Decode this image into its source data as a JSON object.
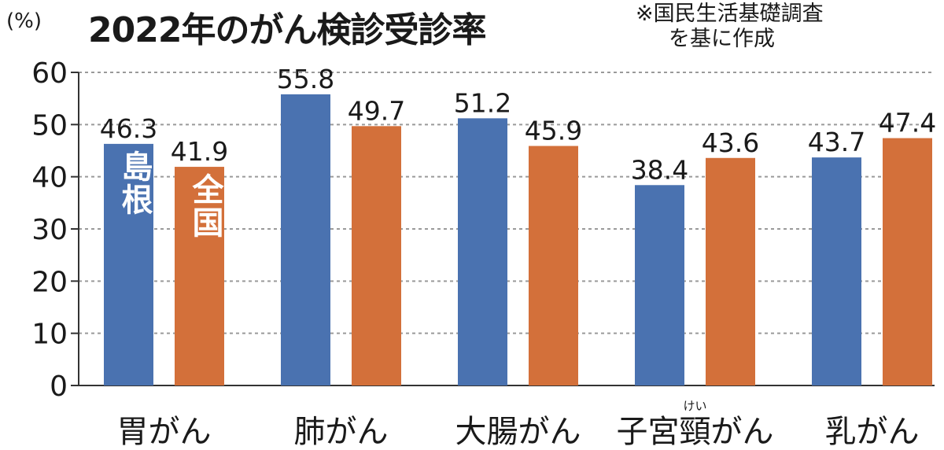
{
  "title": "2022年のがん検診受診率",
  "note_line1": "※国民生活基礎調査",
  "note_line2": "を基に作成",
  "unit": "(%)",
  "colors": {
    "shimane": "#4a72b0",
    "zenkoku": "#d3703a",
    "grid": "#9a9a9a",
    "axis": "#333333"
  },
  "chart_data": {
    "type": "bar",
    "categories": [
      "胃がん",
      "肺がん",
      "大腸がん",
      "子宮頸がん",
      "乳がん"
    ],
    "category_ruby": {
      "index": 3,
      "char": "頸",
      "reading": "けい"
    },
    "series": [
      {
        "name": "島根",
        "values": [
          46.3,
          55.8,
          51.2,
          38.4,
          43.7
        ]
      },
      {
        "name": "全国",
        "values": [
          41.9,
          49.7,
          45.9,
          43.6,
          47.4
        ]
      }
    ],
    "yticks": [
      0,
      10,
      20,
      30,
      40,
      50,
      60
    ],
    "ylim": [
      0,
      60
    ],
    "grid": true,
    "legend_position": "inside-first-group"
  }
}
